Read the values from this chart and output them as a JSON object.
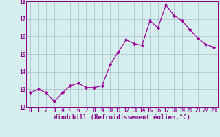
{
  "x": [
    0,
    1,
    2,
    3,
    4,
    5,
    6,
    7,
    8,
    9,
    10,
    11,
    12,
    13,
    14,
    15,
    16,
    17,
    18,
    19,
    20,
    21,
    22,
    23
  ],
  "y": [
    12.8,
    13.0,
    12.8,
    12.3,
    12.8,
    13.2,
    13.35,
    13.1,
    13.1,
    13.2,
    14.4,
    15.1,
    15.8,
    15.6,
    15.5,
    16.9,
    16.5,
    17.8,
    17.2,
    16.9,
    16.4,
    15.9,
    15.55,
    15.4
  ],
  "line_color": "#990099",
  "marker": "D",
  "marker_size": 2.2,
  "xlabel": "Windchill (Refroidissement éolien,°C)",
  "ylim": [
    12,
    18
  ],
  "yticks": [
    12,
    13,
    14,
    15,
    16,
    17,
    18
  ],
  "xticks": [
    0,
    1,
    2,
    3,
    4,
    5,
    6,
    7,
    8,
    9,
    10,
    11,
    12,
    13,
    14,
    15,
    16,
    17,
    18,
    19,
    20,
    21,
    22,
    23
  ],
  "bg_color": "#d6eeee",
  "grid_color": "#aabbcc",
  "tick_color": "#880088",
  "label_color": "#880088",
  "xlabel_fontsize": 6.5,
  "tick_fontsize": 5.5,
  "linewidth": 0.9
}
